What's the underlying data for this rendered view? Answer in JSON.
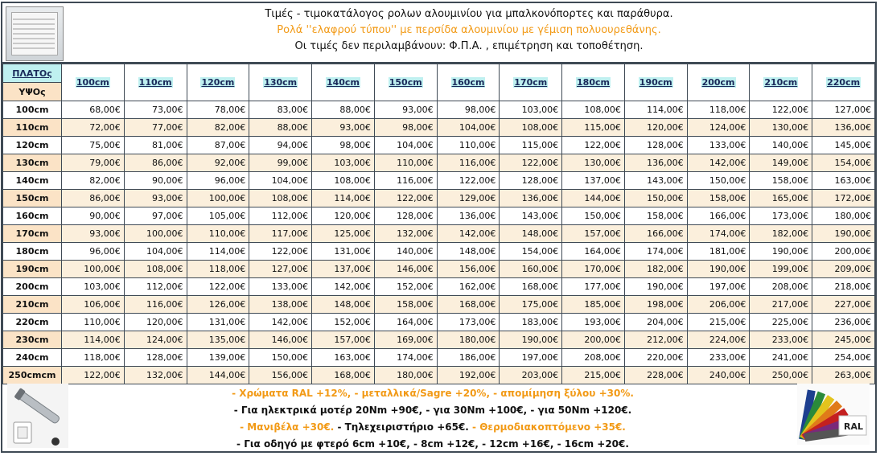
{
  "header": {
    "line1": "Τιμές - τιμοκατάλογος ρολων αλουμινίου για μπαλκονόπορτες και παράθυρα.",
    "line2": "Ρολά ''ελαφρού τύπου'' με περσίδα αλουμινίου με γέμιση πολυουρεθάνης.",
    "line3": "Οι τιμές δεν περιλαμβάνουν: Φ.Π.Α. , επιμέτρηση και τοποθέτηση."
  },
  "table": {
    "width_label": "ΠΛΑΤΟς",
    "height_label": "ΥΨΟς",
    "columns": [
      "100cm",
      "110cm",
      "120cm",
      "130cm",
      "140cm",
      "150cm",
      "160cm",
      "170cm",
      "180cm",
      "190cm",
      "200cm",
      "210cm",
      "220cm"
    ],
    "rows": [
      {
        "label": "100cm",
        "values": [
          "68,00€",
          "73,00€",
          "78,00€",
          "83,00€",
          "88,00€",
          "93,00€",
          "98,00€",
          "103,00€",
          "108,00€",
          "114,00€",
          "118,00€",
          "122,00€",
          "127,00€"
        ]
      },
      {
        "label": "110cm",
        "values": [
          "72,00€",
          "77,00€",
          "82,00€",
          "88,00€",
          "93,00€",
          "98,00€",
          "104,00€",
          "108,00€",
          "115,00€",
          "120,00€",
          "124,00€",
          "130,00€",
          "136,00€"
        ]
      },
      {
        "label": "120cm",
        "values": [
          "75,00€",
          "81,00€",
          "87,00€",
          "94,00€",
          "98,00€",
          "104,00€",
          "110,00€",
          "115,00€",
          "122,00€",
          "128,00€",
          "133,00€",
          "140,00€",
          "145,00€"
        ]
      },
      {
        "label": "130cm",
        "values": [
          "79,00€",
          "86,00€",
          "92,00€",
          "99,00€",
          "103,00€",
          "110,00€",
          "116,00€",
          "122,00€",
          "130,00€",
          "136,00€",
          "142,00€",
          "149,00€",
          "154,00€"
        ]
      },
      {
        "label": "140cm",
        "values": [
          "82,00€",
          "90,00€",
          "96,00€",
          "104,00€",
          "108,00€",
          "116,00€",
          "122,00€",
          "128,00€",
          "137,00€",
          "143,00€",
          "150,00€",
          "158,00€",
          "163,00€"
        ]
      },
      {
        "label": "150cm",
        "values": [
          "86,00€",
          "93,00€",
          "100,00€",
          "108,00€",
          "114,00€",
          "122,00€",
          "129,00€",
          "136,00€",
          "144,00€",
          "150,00€",
          "158,00€",
          "165,00€",
          "172,00€"
        ]
      },
      {
        "label": "160cm",
        "values": [
          "90,00€",
          "97,00€",
          "105,00€",
          "112,00€",
          "120,00€",
          "128,00€",
          "136,00€",
          "143,00€",
          "150,00€",
          "158,00€",
          "166,00€",
          "173,00€",
          "180,00€"
        ]
      },
      {
        "label": "170cm",
        "values": [
          "93,00€",
          "100,00€",
          "110,00€",
          "117,00€",
          "125,00€",
          "132,00€",
          "142,00€",
          "148,00€",
          "157,00€",
          "166,00€",
          "174,00€",
          "182,00€",
          "190,00€"
        ]
      },
      {
        "label": "180cm",
        "values": [
          "96,00€",
          "104,00€",
          "114,00€",
          "122,00€",
          "131,00€",
          "140,00€",
          "148,00€",
          "154,00€",
          "164,00€",
          "174,00€",
          "181,00€",
          "190,00€",
          "200,00€"
        ]
      },
      {
        "label": "190cm",
        "values": [
          "100,00€",
          "108,00€",
          "118,00€",
          "127,00€",
          "137,00€",
          "146,00€",
          "156,00€",
          "160,00€",
          "170,00€",
          "182,00€",
          "190,00€",
          "199,00€",
          "209,00€"
        ]
      },
      {
        "label": "200cm",
        "values": [
          "103,00€",
          "112,00€",
          "122,00€",
          "133,00€",
          "142,00€",
          "152,00€",
          "162,00€",
          "168,00€",
          "177,00€",
          "190,00€",
          "197,00€",
          "208,00€",
          "218,00€"
        ]
      },
      {
        "label": "210cm",
        "values": [
          "106,00€",
          "116,00€",
          "126,00€",
          "138,00€",
          "148,00€",
          "158,00€",
          "168,00€",
          "175,00€",
          "185,00€",
          "198,00€",
          "206,00€",
          "217,00€",
          "227,00€"
        ]
      },
      {
        "label": "220cm",
        "values": [
          "110,00€",
          "120,00€",
          "131,00€",
          "142,00€",
          "152,00€",
          "164,00€",
          "173,00€",
          "183,00€",
          "193,00€",
          "204,00€",
          "215,00€",
          "225,00€",
          "236,00€"
        ]
      },
      {
        "label": "230cm",
        "values": [
          "114,00€",
          "124,00€",
          "135,00€",
          "146,00€",
          "157,00€",
          "169,00€",
          "180,00€",
          "190,00€",
          "200,00€",
          "212,00€",
          "224,00€",
          "233,00€",
          "245,00€"
        ]
      },
      {
        "label": "240cm",
        "values": [
          "118,00€",
          "128,00€",
          "139,00€",
          "150,00€",
          "163,00€",
          "174,00€",
          "186,00€",
          "197,00€",
          "208,00€",
          "220,00€",
          "233,00€",
          "241,00€",
          "254,00€"
        ]
      },
      {
        "label": "250cmcm",
        "values": [
          "122,00€",
          "132,00€",
          "144,00€",
          "156,00€",
          "168,00€",
          "180,00€",
          "192,00€",
          "203,00€",
          "215,00€",
          "228,00€",
          "240,00€",
          "250,00€",
          "263,00€"
        ]
      }
    ]
  },
  "footer": {
    "line1": "- Χρώματα RAL +12%, - μεταλλικά/Sagre +20%, - απομίμηση ξύλου +30%.",
    "line2": "- Για ηλεκτρικά μοτέρ 20Nm +90€, - για 30Nm +100€, - για 50Nm +120€.",
    "line3_a": "- Μανιβέλα +30€.",
    "line3_b": " - Τηλεχειριστήριο +65€.",
    "line3_c": " - Θερμοδιακοπτόμενο +35€.",
    "line4": "- Για οδηγό με φτερό 6cm +10€, - 8cm +12€, - 12cm +16€, - 16cm +20€.",
    "ral_logo": "RAL"
  },
  "colors": {
    "accent_orange": "#f29a16",
    "header_cyan": "#bff0f0",
    "row_alt": "#fbefdc",
    "border": "#3f4a55"
  },
  "icons": {
    "header_image": "roller-shutter-image",
    "footer_left_image": "motor-and-switch-image",
    "footer_right_image": "ral-color-fan-image"
  }
}
